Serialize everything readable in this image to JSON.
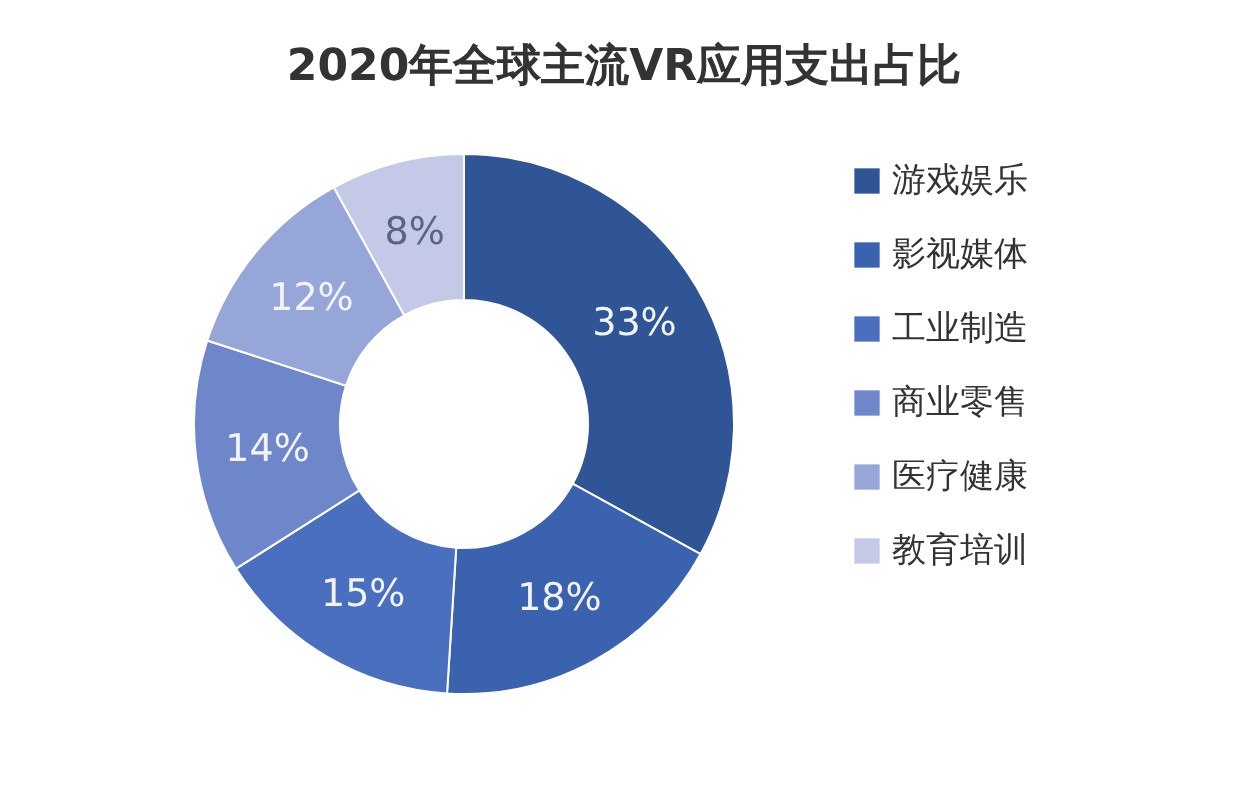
{
  "chart_data": {
    "type": "donut",
    "title": "2020年全球主流VR应用支出占比",
    "categories": [
      "游戏娱乐",
      "影视媒体",
      "工业制造",
      "商业零售",
      "医疗健康",
      "教育培训"
    ],
    "values": [
      33,
      18,
      15,
      14,
      12,
      8
    ],
    "colors": [
      "#2f5597",
      "#3b62ae",
      "#4a6fbf",
      "#6e87cb",
      "#97a6d8",
      "#c3c9e6"
    ],
    "value_labels": [
      "33%",
      "18%",
      "15%",
      "14%",
      "12%",
      "8%"
    ],
    "legend": "right"
  }
}
